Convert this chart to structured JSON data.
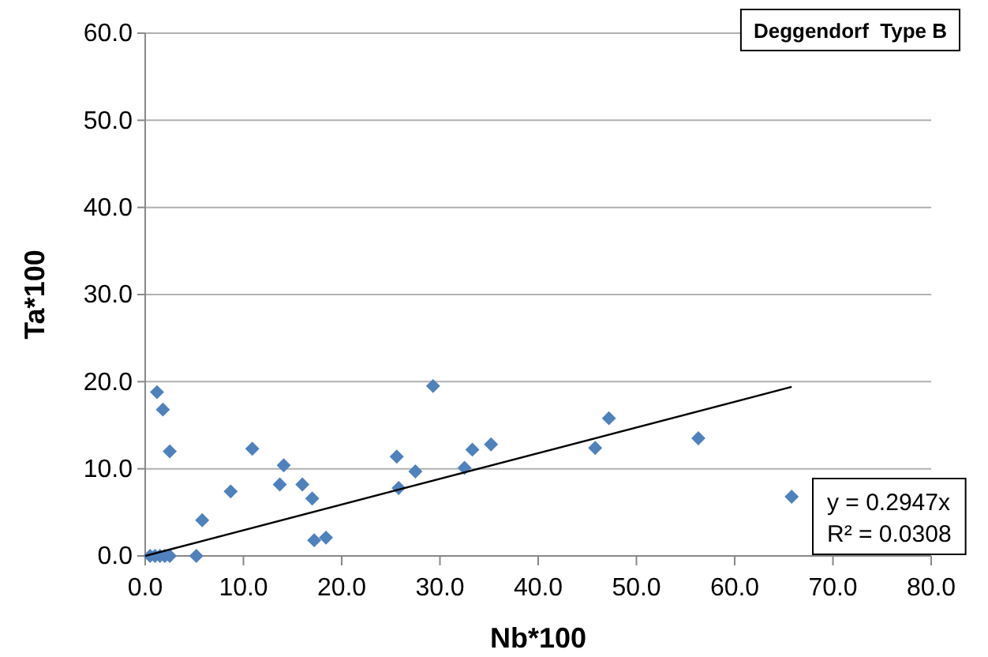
{
  "chart_data": {
    "type": "scatter",
    "title": "Deggendorf  Type B",
    "xlabel": "Nb*100",
    "ylabel": "Ta*100",
    "xlim": [
      0,
      80
    ],
    "xticks": [
      {
        "value": 0,
        "label": "0.0"
      },
      {
        "value": 10,
        "label": "10.0"
      },
      {
        "value": 20,
        "label": "20.0"
      },
      {
        "value": 30,
        "label": "30.0"
      },
      {
        "value": 40,
        "label": "40.0"
      },
      {
        "value": 50,
        "label": "50.0"
      },
      {
        "value": 60,
        "label": "60.0"
      },
      {
        "value": 70,
        "label": "70.0"
      },
      {
        "value": 80,
        "label": "80.0"
      }
    ],
    "ylim": [
      0,
      60
    ],
    "yticks": [
      {
        "value": 0,
        "label": "0.0"
      },
      {
        "value": 10,
        "label": "10.0"
      },
      {
        "value": 20,
        "label": "20.0"
      },
      {
        "value": 30,
        "label": "30.0"
      },
      {
        "value": 40,
        "label": "40.0"
      },
      {
        "value": 50,
        "label": "50.0"
      },
      {
        "value": 60,
        "label": "60.0"
      }
    ],
    "grid": "y",
    "marker": "diamond",
    "annotations": [
      "y = 0.2947x",
      "R² = 0.0308"
    ],
    "series": [
      {
        "color": "#4f81bd",
        "x": [
          0.5,
          1,
          1.5,
          2,
          2.5,
          1.2,
          1.8,
          2.5,
          5.2,
          5.8,
          8.7,
          10.9,
          13.7,
          14.1,
          16.0,
          17.0,
          17.2,
          18.4,
          25.6,
          25.8,
          27.5,
          29.3,
          32.5,
          33.3,
          35.2,
          45.8,
          47.2,
          56.3,
          65.8
        ],
        "values": [
          0,
          0,
          0,
          0,
          0,
          18.8,
          16.8,
          12.0,
          0,
          4.1,
          7.4,
          12.3,
          8.2,
          10.4,
          8.2,
          6.6,
          1.8,
          2.1,
          11.4,
          7.8,
          9.7,
          19.5,
          10.1,
          12.2,
          12.8,
          12.4,
          15.8,
          13.5,
          6.8
        ]
      },
      {
        "type": "line",
        "color": "#000000",
        "line_style": "solid",
        "marker": "none",
        "x": [
          0,
          65.8
        ],
        "values": [
          0,
          19.4
        ]
      }
    ]
  }
}
